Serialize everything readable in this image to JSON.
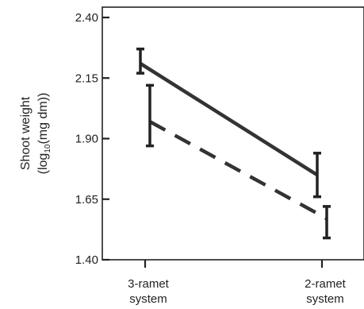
{
  "chart_data": {
    "type": "line",
    "categories": [
      "3-ramet\nsystem",
      "2-ramet\nsystem"
    ],
    "series": [
      {
        "style": "solid",
        "values": [
          2.21,
          1.75
        ],
        "error": [
          [
            2.17,
            2.27
          ],
          [
            1.66,
            1.84
          ]
        ]
      },
      {
        "style": "dashed",
        "values": [
          1.97,
          1.57
        ],
        "error": [
          [
            1.87,
            2.12
          ],
          [
            1.49,
            1.62
          ]
        ]
      }
    ],
    "ylabel_line1": "Shoot weight",
    "ylabel_line2_prefix": "(log",
    "ylabel_line2_sub": "10",
    "ylabel_line2_suffix": "(mg dm))",
    "yticks": [
      "1.40",
      "1.65",
      "1.90",
      "2.15",
      "2.40"
    ],
    "ylim": [
      1.4,
      2.4
    ],
    "xlabels": [
      {
        "line1": "3-ramet",
        "line2": "system"
      },
      {
        "line1": "2-ramet",
        "line2": "system"
      }
    ],
    "grid": false
  }
}
